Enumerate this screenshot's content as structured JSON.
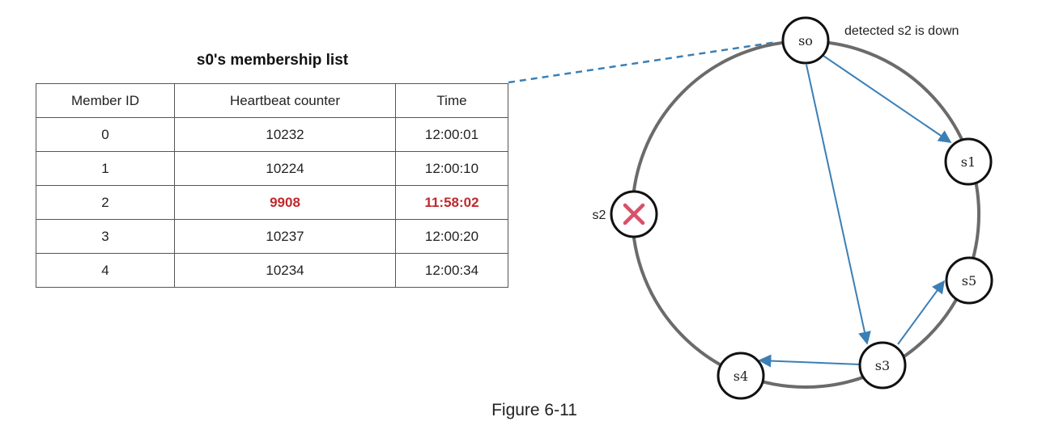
{
  "membership_list": {
    "title": "s0's membership list",
    "columns": [
      "Member ID",
      "Heartbeat counter",
      "Time"
    ],
    "rows": [
      {
        "member_id": "0",
        "heartbeat": "10232",
        "time": "12:00:01",
        "flagged": false
      },
      {
        "member_id": "1",
        "heartbeat": "10224",
        "time": "12:00:10",
        "flagged": false
      },
      {
        "member_id": "2",
        "heartbeat": "9908",
        "time": "11:58:02",
        "flagged": true
      },
      {
        "member_id": "3",
        "heartbeat": "10237",
        "time": "12:00:20",
        "flagged": false
      },
      {
        "member_id": "4",
        "heartbeat": "10234",
        "time": "12:00:34",
        "flagged": false
      }
    ],
    "flag_color": "#c0282d"
  },
  "ring": {
    "nodes": {
      "s0": "so",
      "s1": "s1",
      "s2": "",
      "s3": "s3",
      "s4": "s4",
      "s5": "s5"
    },
    "s2_side_label": "s2",
    "s2_status_icon": "cross-icon",
    "annotation": "detected s2 is down",
    "edges": [
      {
        "from": "s0",
        "to": "s1"
      },
      {
        "from": "s0",
        "to": "s3"
      },
      {
        "from": "s3",
        "to": "s4"
      },
      {
        "from": "s3",
        "to": "s5"
      }
    ],
    "edge_color": "#3b7fb5",
    "down_color": "#d9506a"
  },
  "caption": "Figure 6-11"
}
